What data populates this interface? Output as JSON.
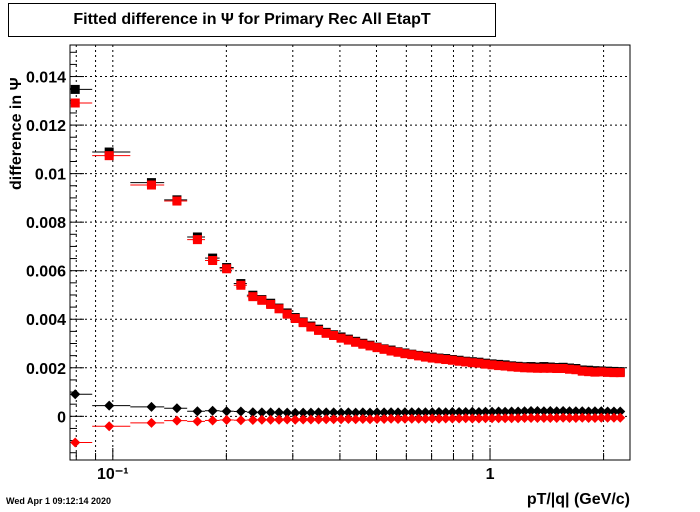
{
  "title": "Fitted difference in  Ψ  for Primary Rec All EtapT",
  "timestamp": "Wed Apr  1 09:12:14 2020",
  "chart_data": {
    "type": "scatter",
    "title": "Fitted difference in  Ψ  for Primary Rec All EtapT",
    "xlabel": "pT/|q| (GeV/c)",
    "ylabel": "difference in Ψ",
    "xscale": "log",
    "xlim": [
      0.077,
      2.35
    ],
    "ylim": [
      -0.0018,
      0.0153
    ],
    "grid": true,
    "x_tick_labels": [
      {
        "value": 0.1,
        "label": "10⁻¹"
      },
      {
        "value": 1,
        "label": "1"
      }
    ],
    "y_tick_labels": [
      {
        "value": 0,
        "label": "0"
      },
      {
        "value": 0.002,
        "label": "0.002"
      },
      {
        "value": 0.004,
        "label": "0.004"
      },
      {
        "value": 0.006,
        "label": "0.006"
      },
      {
        "value": 0.008,
        "label": "0.008"
      },
      {
        "value": 0.01,
        "label": "0.01"
      },
      {
        "value": 0.012,
        "label": "0.012"
      },
      {
        "value": 0.014,
        "label": "0.014"
      }
    ],
    "x": [
      0.0795,
      0.0978,
      0.1266,
      0.1479,
      0.1676,
      0.1839,
      0.2003,
      0.2185,
      0.2351,
      0.2484,
      0.2621,
      0.2758,
      0.2899,
      0.3045,
      0.3196,
      0.3351,
      0.3511,
      0.3678,
      0.385,
      0.4028,
      0.4212,
      0.4403,
      0.4601,
      0.4806,
      0.5018,
      0.5238,
      0.5466,
      0.5703,
      0.5949,
      0.6203,
      0.6468,
      0.6742,
      0.7027,
      0.7322,
      0.7629,
      0.7947,
      0.8277,
      0.862,
      0.8975,
      0.9344,
      0.9727,
      1.0124,
      1.0536,
      1.0964,
      1.1408,
      1.1869,
      1.2347,
      1.2844,
      1.3359,
      1.3894,
      1.4449,
      1.5025,
      1.5623,
      1.6244,
      1.6889,
      1.7558,
      1.8253,
      1.8974,
      1.9722,
      2.0499,
      2.1306,
      2.2144
    ],
    "series": [
      {
        "color": "#000000",
        "marker": "square",
        "values": [
          0.01347,
          0.01089,
          0.00963,
          0.00892,
          0.00739,
          0.00652,
          0.00613,
          0.00547,
          0.00499,
          0.00481,
          0.00466,
          0.00446,
          0.00426,
          0.00407,
          0.00389,
          0.00372,
          0.00359,
          0.00346,
          0.00336,
          0.00327,
          0.00318,
          0.00309,
          0.00301,
          0.00293,
          0.00285,
          0.00278,
          0.00273,
          0.00266,
          0.00261,
          0.00256,
          0.00251,
          0.00248,
          0.00244,
          0.0024,
          0.00238,
          0.00234,
          0.00231,
          0.00227,
          0.00225,
          0.00223,
          0.00219,
          0.00216,
          0.00214,
          0.00212,
          0.00208,
          0.00206,
          0.00204,
          0.00205,
          0.00203,
          0.00205,
          0.00203,
          0.00201,
          0.00202,
          0.00199,
          0.00197,
          0.00191,
          0.0019,
          0.00188,
          0.00187,
          0.00186,
          0.00185,
          0.00184
        ]
      },
      {
        "color": "#ff0000",
        "marker": "square",
        "values": [
          0.01291,
          0.01074,
          0.00953,
          0.00887,
          0.00728,
          0.00642,
          0.00608,
          0.0054,
          0.00493,
          0.00478,
          0.00461,
          0.00443,
          0.00421,
          0.00403,
          0.00386,
          0.00368,
          0.00354,
          0.00342,
          0.00333,
          0.00322,
          0.00314,
          0.00305,
          0.00297,
          0.0029,
          0.00283,
          0.00276,
          0.00269,
          0.00264,
          0.00258,
          0.00254,
          0.00249,
          0.00244,
          0.0024,
          0.00237,
          0.00234,
          0.00231,
          0.00227,
          0.00224,
          0.00221,
          0.00219,
          0.00215,
          0.00212,
          0.00209,
          0.00207,
          0.00204,
          0.00202,
          0.002,
          0.00199,
          0.00198,
          0.00198,
          0.00198,
          0.00197,
          0.00197,
          0.00194,
          0.00192,
          0.00186,
          0.00184,
          0.00182,
          0.00183,
          0.00181,
          0.0018,
          0.0018
        ]
      },
      {
        "color": "#000000",
        "marker": "diamond",
        "values": [
          0.00091,
          0.00044,
          0.00039,
          0.00033,
          0.00021,
          0.00023,
          0.00021,
          0.0002,
          0.00017,
          0.00016,
          0.00016,
          0.00016,
          0.00015,
          0.00014,
          0.00015,
          0.00015,
          0.00016,
          0.00016,
          0.00016,
          0.00015,
          0.00016,
          0.00015,
          0.00016,
          0.00015,
          0.00016,
          0.00016,
          0.00017,
          0.00016,
          0.00017,
          0.00017,
          0.00017,
          0.00017,
          0.00017,
          0.00018,
          0.00017,
          0.00018,
          0.00018,
          0.00018,
          0.00019,
          0.00018,
          0.00019,
          0.00019,
          0.0002,
          0.00019,
          0.0002,
          0.0002,
          0.00021,
          0.00022,
          0.00022,
          0.00021,
          0.00022,
          0.00021,
          0.00022,
          0.00021,
          0.00021,
          0.00021,
          0.0002,
          0.00021,
          0.00021,
          0.0002,
          0.0002,
          0.0002
        ]
      },
      {
        "color": "#ff0000",
        "marker": "diamond",
        "values": [
          -0.00108,
          -0.00041,
          -0.00027,
          -0.00018,
          -0.00021,
          -0.00017,
          -0.00015,
          -0.00016,
          -0.00015,
          -0.00014,
          -0.00014,
          -0.00014,
          -0.00013,
          -0.00014,
          -0.00013,
          -0.00013,
          -0.00013,
          -0.00012,
          -0.00012,
          -0.00012,
          -0.00011,
          -0.00012,
          -0.00011,
          -0.00012,
          -0.00011,
          -0.00011,
          -0.0001,
          -0.00011,
          -0.0001,
          -0.0001,
          -0.0001,
          -0.0001,
          -9e-05,
          -0.0001,
          -9e-05,
          -9e-05,
          -9e-05,
          -8e-05,
          -9e-05,
          -9e-05,
          -8e-05,
          -8e-05,
          -8e-05,
          -8e-05,
          -8e-05,
          -8e-05,
          -7e-05,
          -7e-05,
          -7e-05,
          -7e-05,
          -7e-05,
          -7e-05,
          -6e-05,
          -7e-05,
          -7e-05,
          -6e-05,
          -7e-05,
          -7e-05,
          -6e-05,
          -6e-05,
          -6e-05,
          -6e-05
        ]
      }
    ]
  }
}
